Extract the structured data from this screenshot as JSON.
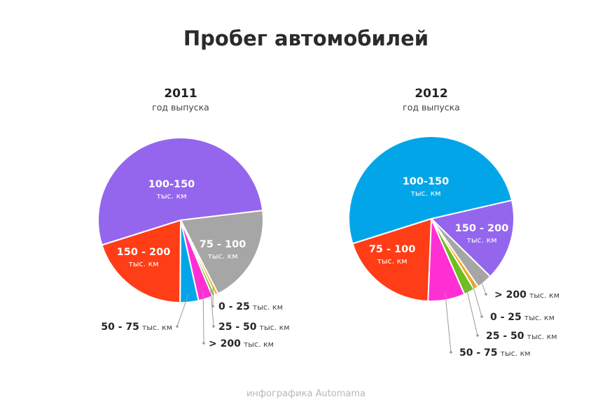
{
  "title": "Пробег автомобилей",
  "footer": "инфографика Automama",
  "chart_data": [
    {
      "type": "pie",
      "title": "2011",
      "subtitle": "год выпуска",
      "slices": [
        {
          "label": "100-150",
          "unit": "тыс. км",
          "value": 53,
          "color": "#9466ee"
        },
        {
          "label": "75 - 100",
          "unit": "тыс. км",
          "value": 19.4,
          "color": "#a6a6a6"
        },
        {
          "label": "0 - 25",
          "unit": "тыс. км",
          "value": 0.6,
          "color": "#f5a623"
        },
        {
          "label": "25 - 50",
          "unit": "тыс. км",
          "value": 0.6,
          "color": "#6fbe1f"
        },
        {
          "label": "> 200",
          "unit": "тыс. км",
          "value": 2.8,
          "color": "#ff2fd4"
        },
        {
          "label": "50 - 75",
          "unit": "тыс. км",
          "value": 3.6,
          "color": "#02a6e8"
        },
        {
          "label": "150 - 200",
          "unit": "тыс. км",
          "value": 20,
          "color": "#ff3d16"
        }
      ]
    },
    {
      "type": "pie",
      "title": "2012",
      "subtitle": "год выпуска",
      "slices": [
        {
          "label": "100-150",
          "unit": "тыс. км",
          "value": 54,
          "color": "#02a6e8"
        },
        {
          "label": "150 - 200",
          "unit": "тыс. км",
          "value": 16.8,
          "color": "#9466ee"
        },
        {
          "label": "> 200",
          "unit": "тыс. км",
          "value": 3.2,
          "color": "#a6a6a6"
        },
        {
          "label": "0 - 25",
          "unit": "тыс. км",
          "value": 1.0,
          "color": "#f5a623"
        },
        {
          "label": "25 - 50",
          "unit": "тыс. км",
          "value": 2.2,
          "color": "#6fbe1f"
        },
        {
          "label": "50 - 75",
          "unit": "тыс. км",
          "value": 7.6,
          "color": "#ff2fd4"
        },
        {
          "label": "75 - 100",
          "unit": "тыс. км",
          "value": 20.5,
          "color": "#ff3d16"
        }
      ]
    }
  ]
}
